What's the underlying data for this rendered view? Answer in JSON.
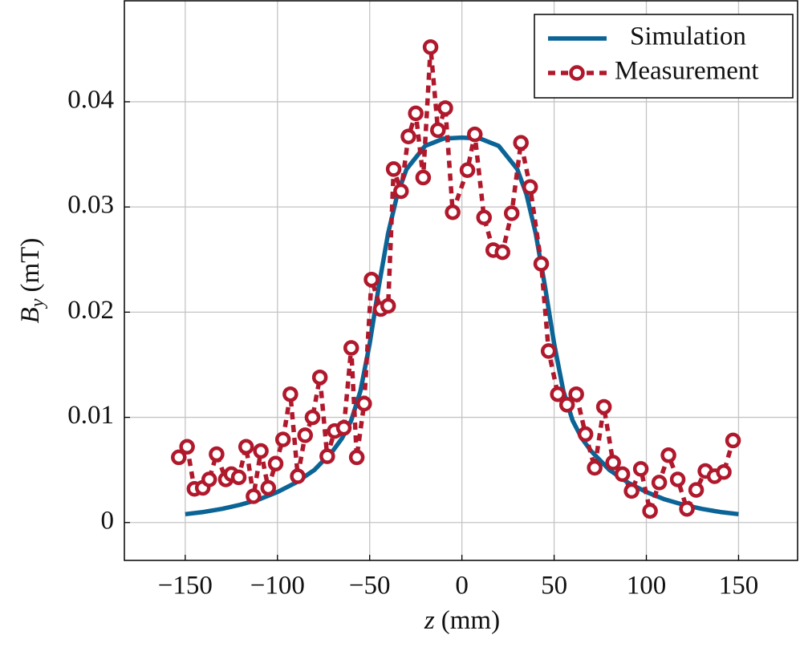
{
  "chart_data": {
    "type": "line",
    "xlabel": {
      "symbol": "z",
      "unit": "(mm)"
    },
    "ylabel": {
      "symbol": "B",
      "subscript": "y",
      "unit": "(mT)"
    },
    "xlim": [
      -183,
      182
    ],
    "ylim": [
      -0.0036,
      0.0496
    ],
    "xticks": [
      {
        "value": -150,
        "label": "−150"
      },
      {
        "value": -100,
        "label": "−100"
      },
      {
        "value": -50,
        "label": "−50"
      },
      0,
      50,
      100,
      150
    ],
    "yticks": [
      0,
      0.01,
      0.02,
      0.03,
      0.04
    ],
    "grid": true,
    "legend": "upper right",
    "series": [
      {
        "name": "Simulation",
        "color": "#0b6496",
        "style": "solid",
        "x": [
          -150,
          -140,
          -130,
          -120,
          -110,
          -100,
          -90,
          -80,
          -70,
          -65,
          -60,
          -55,
          -50,
          -45,
          -40,
          -35,
          -30,
          -20,
          -10,
          0,
          10,
          20,
          30,
          35,
          40,
          45,
          50,
          55,
          60,
          65,
          70,
          80,
          90,
          100,
          110,
          120,
          130,
          140,
          150
        ],
        "values": [
          0.0008,
          0.001,
          0.0013,
          0.0017,
          0.0022,
          0.0029,
          0.0038,
          0.005,
          0.0068,
          0.008,
          0.0097,
          0.0125,
          0.017,
          0.0225,
          0.0275,
          0.0312,
          0.0336,
          0.0358,
          0.0365,
          0.0366,
          0.0365,
          0.0358,
          0.0336,
          0.0312,
          0.0275,
          0.0225,
          0.017,
          0.0125,
          0.0097,
          0.008,
          0.0068,
          0.005,
          0.0038,
          0.0029,
          0.0022,
          0.0017,
          0.0013,
          0.001,
          0.0008
        ]
      },
      {
        "name": "Measurement",
        "color": "#b0182c",
        "style": "dashed-markers",
        "x": [
          -153.5,
          -149,
          -145,
          -140.5,
          -137,
          -133,
          -128,
          -125,
          -121,
          -117,
          -113,
          -109,
          -105,
          -101,
          -97,
          -93,
          -89,
          -85,
          -81,
          -77,
          -73,
          -69,
          -64,
          -60,
          -57,
          -53,
          -49,
          -44,
          -40,
          -37,
          -33,
          -29,
          -25,
          -21,
          -17,
          -13,
          -9,
          -5,
          3,
          7,
          12,
          17,
          22,
          27,
          32,
          37,
          43,
          47,
          52,
          57,
          62,
          67,
          72,
          77,
          82,
          87,
          92,
          97,
          102,
          107,
          112,
          117,
          122,
          127,
          132,
          137,
          142,
          147
        ],
        "values": [
          0.0062,
          0.0072,
          0.0032,
          0.0033,
          0.0041,
          0.0065,
          0.0041,
          0.0046,
          0.0043,
          0.0072,
          0.0025,
          0.0068,
          0.0033,
          0.0056,
          0.0079,
          0.0122,
          0.0044,
          0.0083,
          0.01,
          0.0138,
          0.0063,
          0.0087,
          0.009,
          0.0166,
          0.0062,
          0.0113,
          0.0231,
          0.0203,
          0.0206,
          0.0336,
          0.0315,
          0.0367,
          0.0389,
          0.0328,
          0.0452,
          0.0373,
          0.0394,
          0.0295,
          0.0335,
          0.0369,
          0.029,
          0.0259,
          0.0257,
          0.0294,
          0.0361,
          0.0319,
          0.0246,
          0.0163,
          0.0122,
          0.0112,
          0.0122,
          0.0084,
          0.0052,
          0.011,
          0.0057,
          0.0046,
          0.003,
          0.0051,
          0.0011,
          0.0038,
          0.0064,
          0.0041,
          0.0013,
          0.0031,
          0.0049,
          0.0044,
          0.0048,
          0.0078
        ]
      }
    ]
  }
}
